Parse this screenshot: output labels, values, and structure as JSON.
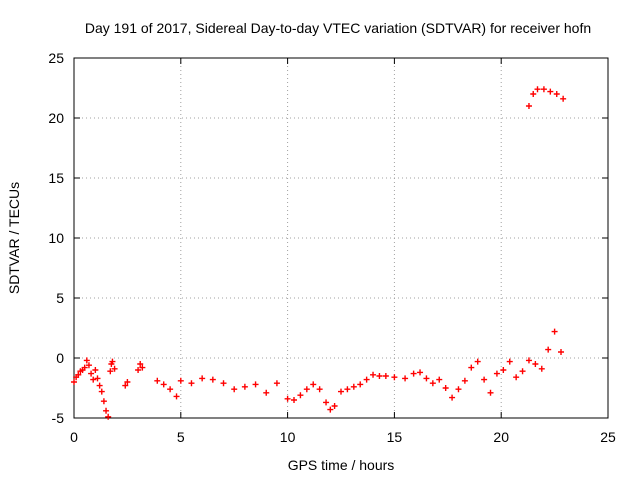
{
  "chart_data": {
    "type": "scatter",
    "title": "Day 191 of 2017, Sidereal Day-to-day VTEC variation (SDTVAR) for receiver hofn",
    "xlabel": "GPS time / hours",
    "ylabel": "SDTVAR / TECUs",
    "xlim": [
      0,
      25
    ],
    "ylim": [
      -5,
      25
    ],
    "x_ticks": [
      0,
      5,
      10,
      15,
      20,
      25
    ],
    "y_ticks": [
      -5,
      0,
      5,
      10,
      15,
      20,
      25
    ],
    "grid": true,
    "marker": "+",
    "series": [
      {
        "name": "SDTVAR",
        "color": "#ff0000",
        "x": [
          0.0,
          0.1,
          0.2,
          0.3,
          0.4,
          0.5,
          0.6,
          0.7,
          0.8,
          0.9,
          1.0,
          1.1,
          1.2,
          1.3,
          1.4,
          1.5,
          1.6,
          1.7,
          1.75,
          1.8,
          1.9,
          2.4,
          2.5,
          3.0,
          3.1,
          3.2,
          3.9,
          4.2,
          4.5,
          4.8,
          5.0,
          5.5,
          6.0,
          6.5,
          7.0,
          7.5,
          8.0,
          8.5,
          9.0,
          9.5,
          10.0,
          10.3,
          10.6,
          10.9,
          11.2,
          11.5,
          11.8,
          12.0,
          12.2,
          12.5,
          12.8,
          13.1,
          13.4,
          13.7,
          14.0,
          14.3,
          14.6,
          15.0,
          15.5,
          15.9,
          16.2,
          16.5,
          16.8,
          17.1,
          17.4,
          17.7,
          18.0,
          18.3,
          18.6,
          18.9,
          19.2,
          19.5,
          19.8,
          20.1,
          20.4,
          20.7,
          21.0,
          21.3,
          21.6,
          21.9,
          22.2,
          22.5,
          22.8,
          21.3,
          21.5,
          21.7,
          22.0,
          22.3,
          22.6,
          22.9
        ],
        "y": [
          -2.0,
          -1.6,
          -1.4,
          -1.1,
          -1.0,
          -0.8,
          -0.2,
          -0.6,
          -1.3,
          -1.8,
          -1.0,
          -1.7,
          -2.3,
          -2.8,
          -3.6,
          -4.4,
          -4.9,
          -1.1,
          -0.5,
          -0.3,
          -0.9,
          -2.3,
          -2.0,
          -1.0,
          -0.5,
          -0.8,
          -1.9,
          -2.2,
          -2.6,
          -3.2,
          -1.9,
          -2.1,
          -1.7,
          -1.8,
          -2.1,
          -2.6,
          -2.4,
          -2.2,
          -2.9,
          -2.1,
          -3.4,
          -3.5,
          -3.1,
          -2.6,
          -2.2,
          -2.6,
          -3.7,
          -4.3,
          -4.0,
          -2.8,
          -2.6,
          -2.4,
          -2.2,
          -1.8,
          -1.4,
          -1.5,
          -1.5,
          -1.6,
          -1.7,
          -1.3,
          -1.2,
          -1.7,
          -2.1,
          -1.8,
          -2.5,
          -3.3,
          -2.6,
          -1.9,
          -0.8,
          -0.3,
          -1.8,
          -2.9,
          -1.3,
          -1.0,
          -0.3,
          -1.6,
          -1.1,
          -0.2,
          -0.5,
          -0.9,
          0.7,
          2.2,
          0.5,
          21.0,
          22.0,
          22.4,
          22.4,
          22.2,
          22.0,
          21.6
        ]
      }
    ]
  }
}
